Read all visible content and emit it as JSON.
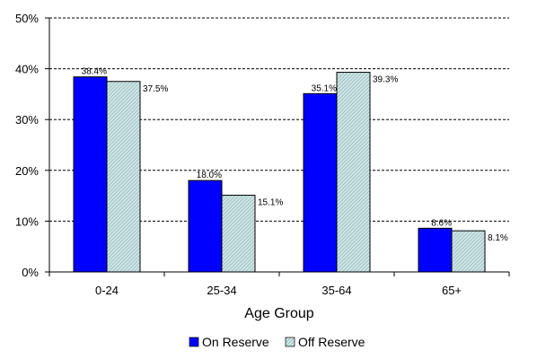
{
  "chart_data": {
    "type": "bar",
    "title": "",
    "xlabel": "Age Group",
    "ylabel": "",
    "categories": [
      "0-24",
      "25-34",
      "35-64",
      "65+"
    ],
    "series": [
      {
        "name": "On Reserve",
        "values": [
          38.4,
          18.0,
          35.1,
          8.6
        ],
        "labels": [
          "38.4%",
          "18.0%",
          "35.1%",
          "8.6%"
        ],
        "color": "#0000ff"
      },
      {
        "name": "Off Reserve",
        "values": [
          37.5,
          15.1,
          39.3,
          8.1
        ],
        "labels": [
          "37.5%",
          "15.1%",
          "39.3%",
          "8.1%"
        ],
        "color": "#cfe6e6"
      }
    ],
    "ylim": [
      0,
      50
    ],
    "yticks": [
      0,
      10,
      20,
      30,
      40,
      50
    ],
    "ytick_labels": [
      "0%",
      "10%",
      "20%",
      "30%",
      "40%",
      "50%"
    ],
    "grid": "horizontal dashed",
    "legend": "bottom"
  }
}
